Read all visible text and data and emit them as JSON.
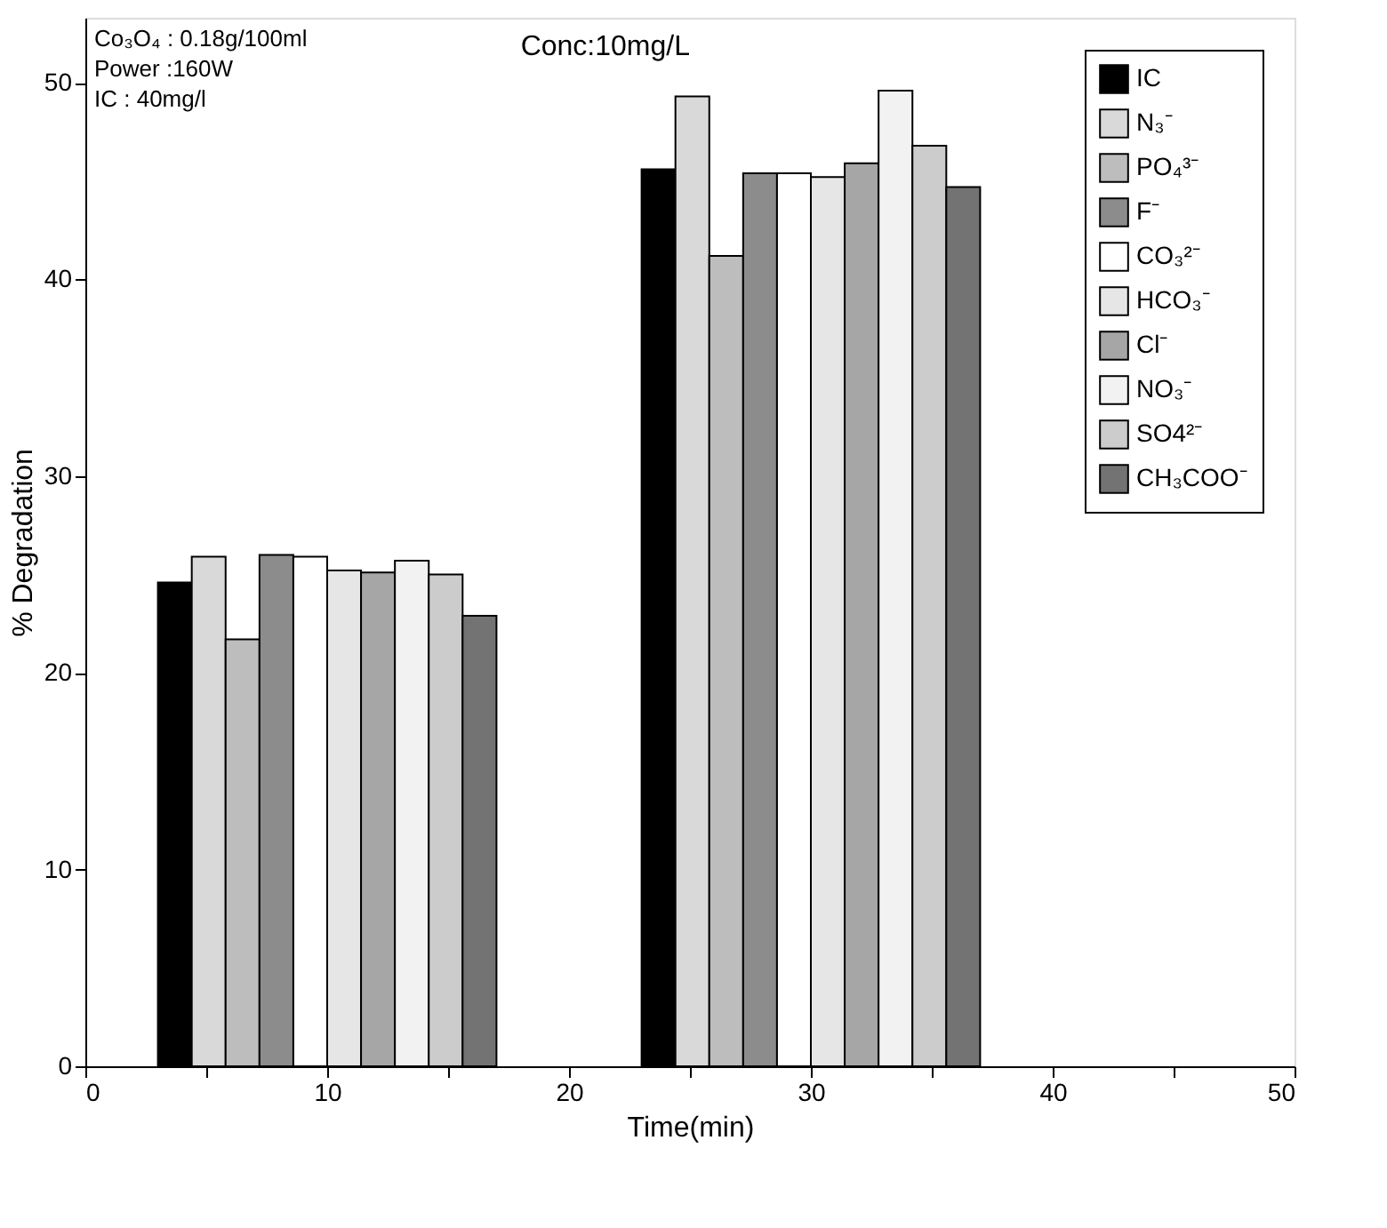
{
  "chart_data": {
    "type": "bar",
    "xlabel": "Time(min)",
    "ylabel": "% Degradation",
    "x": [
      10,
      30
    ],
    "series": [
      {
        "name": "IC",
        "color": "#000000",
        "values": [
          24.6,
          45.6
        ]
      },
      {
        "name": "N₃⁻",
        "color": "#d9d9d9",
        "values": [
          25.9,
          49.3
        ]
      },
      {
        "name": "PO₄³⁻",
        "color": "#bdbdbd",
        "values": [
          21.7,
          41.2
        ]
      },
      {
        "name": "F⁻",
        "color": "#8c8c8c",
        "values": [
          26.0,
          45.4
        ]
      },
      {
        "name": "CO₃²⁻",
        "color": "#ffffff",
        "values": [
          25.9,
          45.4
        ]
      },
      {
        "name": "HCO₃⁻",
        "color": "#e6e6e6",
        "values": [
          25.2,
          45.2
        ]
      },
      {
        "name": "Cl⁻",
        "color": "#a6a6a6",
        "values": [
          25.1,
          45.9
        ]
      },
      {
        "name": "NO₃⁻",
        "color": "#f2f2f2",
        "values": [
          25.7,
          49.6
        ]
      },
      {
        "name": "SO4²⁻",
        "color": "#cccccc",
        "values": [
          25.0,
          46.8
        ]
      },
      {
        "name": "CH₃COO⁻",
        "color": "#737373",
        "values": [
          22.9,
          44.7
        ]
      }
    ],
    "xlim": [
      0,
      50
    ],
    "xticks": [
      0,
      {
        "value": 5,
        "label": null
      },
      10,
      {
        "value": 15,
        "label": null
      },
      20,
      {
        "value": 25,
        "label": null
      },
      30,
      {
        "value": 35,
        "label": null
      },
      40,
      {
        "value": 45,
        "label": null
      },
      50
    ],
    "ylim": [
      0,
      53.3
    ],
    "yticks": [
      0,
      10,
      20,
      30,
      40,
      50
    ],
    "annotations": [
      "Co₃O₄ : 0.18g/100ml",
      "Power :160W",
      "IC : 40mg/l",
      "Conc:10mg/L"
    ],
    "grid": false,
    "legend": "top right"
  }
}
